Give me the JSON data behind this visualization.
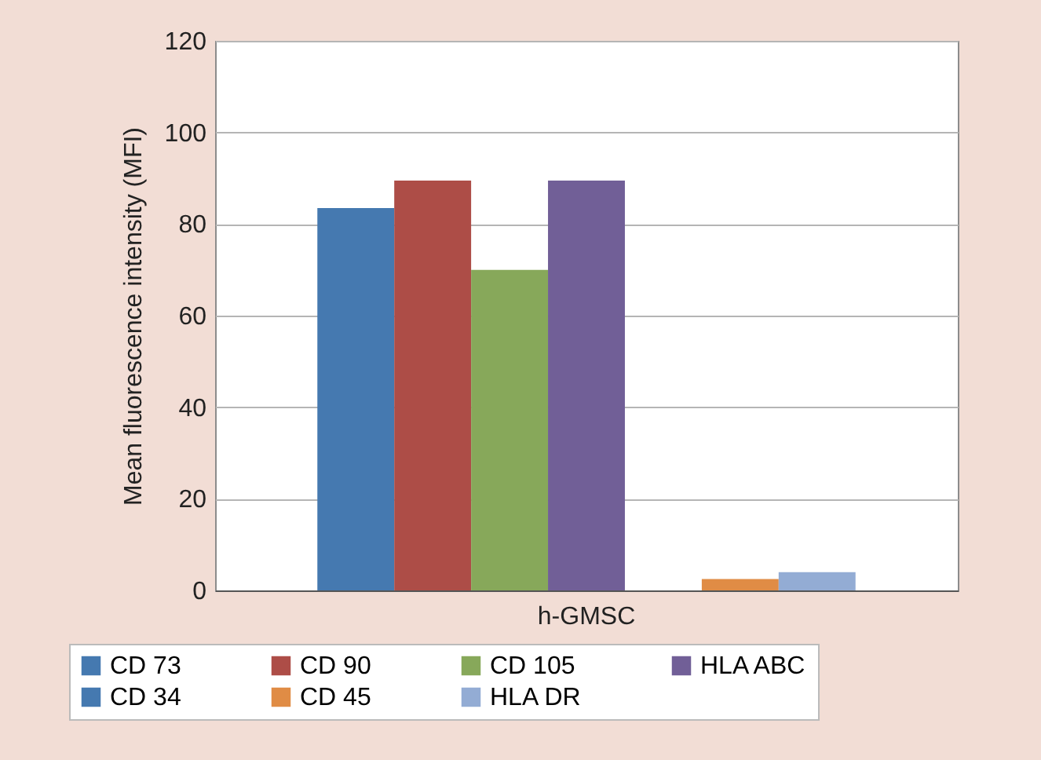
{
  "chart_data": {
    "type": "bar",
    "ylabel": "Mean fluorescence intensity (MFI)",
    "categories": [
      "h-GMSC"
    ],
    "series": [
      {
        "name": "CD 73",
        "color": "#4579b0",
        "values": [
          83.5
        ]
      },
      {
        "name": "CD 90",
        "color": "#ad4d47",
        "values": [
          89.5
        ]
      },
      {
        "name": "CD 105",
        "color": "#87a85a",
        "values": [
          70
        ]
      },
      {
        "name": "HLA ABC",
        "color": "#715f97",
        "values": [
          89.5
        ]
      },
      {
        "name": "CD 34",
        "color": "#4579b0",
        "values": [
          0
        ]
      },
      {
        "name": "CD 45",
        "color": "#e08c45",
        "values": [
          2.5
        ]
      },
      {
        "name": "HLA DR",
        "color": "#93acd4",
        "values": [
          4
        ]
      }
    ],
    "ylim": [
      0,
      120
    ],
    "yticks": [
      0,
      20,
      40,
      60,
      80,
      100,
      120
    ],
    "grid": "y",
    "legend": "bottom"
  }
}
